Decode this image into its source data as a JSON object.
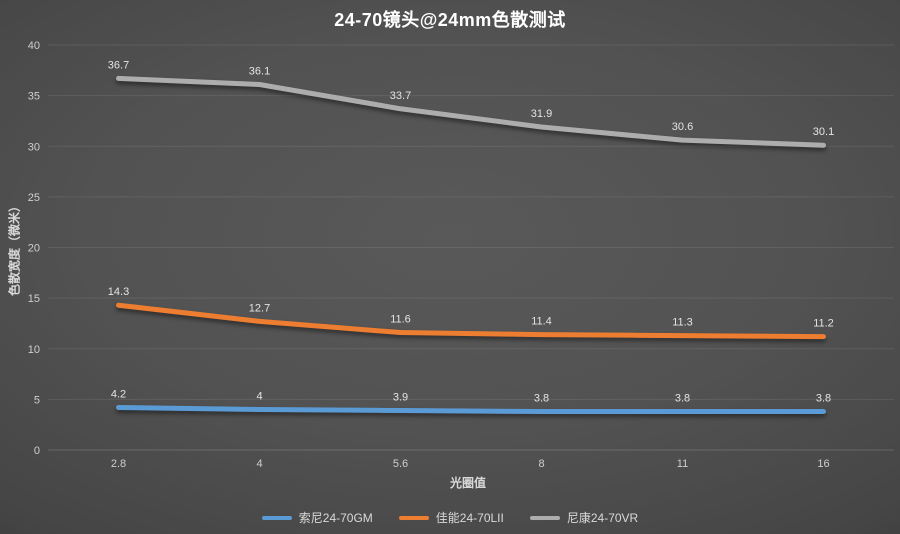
{
  "chart_data": {
    "type": "line",
    "title": "24-70镜头@24mm色散测试",
    "xlabel": "光圈值",
    "ylabel": "色散宽度（微米）",
    "categories": [
      "2.8",
      "4",
      "5.6",
      "8",
      "11",
      "16"
    ],
    "series": [
      {
        "name": "索尼24-70GM",
        "color": "#5B9BD5",
        "values": [
          4.2,
          4,
          3.9,
          3.8,
          3.8,
          3.8
        ]
      },
      {
        "name": "佳能24-70LII",
        "color": "#ED7D31",
        "values": [
          14.3,
          12.7,
          11.6,
          11.4,
          11.3,
          11.2
        ]
      },
      {
        "name": "尼康24-70VR",
        "color": "#ADADAD",
        "values": [
          36.7,
          36.1,
          33.7,
          31.9,
          30.6,
          30.1
        ]
      }
    ],
    "ylim": [
      0,
      40
    ],
    "ytick_step": 5,
    "grid": true,
    "legend_position": "bottom",
    "data_labels": true
  },
  "colors": {
    "background_center": "#595959",
    "background_edge": "#272727",
    "gridline": "rgba(255,255,255,0.09)",
    "axis_line": "rgba(255,255,255,0.16)",
    "text": "#d9d9d9",
    "title_text": "#ffffff"
  }
}
